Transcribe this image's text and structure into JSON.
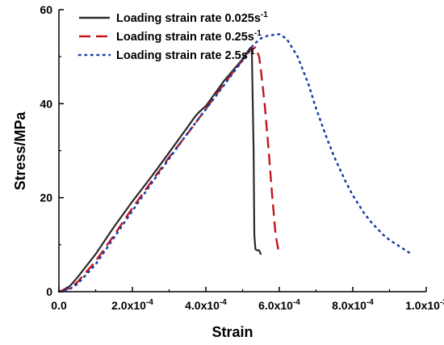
{
  "chart_data": {
    "type": "line",
    "xlabel": "Strain",
    "ylabel": "Stress/MPa",
    "xlim": [
      0,
      0.001
    ],
    "ylim": [
      0,
      60
    ],
    "x_ticks": [
      {
        "value": 0.0,
        "base": "0.0",
        "exp": ""
      },
      {
        "value": 0.0002,
        "base": "2.0x10",
        "exp": "-4"
      },
      {
        "value": 0.0004,
        "base": "4.0x10",
        "exp": "-4"
      },
      {
        "value": 0.0006,
        "base": "6.0x10",
        "exp": "-4"
      },
      {
        "value": 0.0008,
        "base": "8.0x10",
        "exp": "-4"
      },
      {
        "value": 0.001,
        "base": "1.0x10",
        "exp": "-3"
      }
    ],
    "y_ticks": [
      {
        "value": 0,
        "label": "0"
      },
      {
        "value": 20,
        "label": "20"
      },
      {
        "value": 40,
        "label": "40"
      },
      {
        "value": 60,
        "label": "60"
      }
    ],
    "legend_position": "top-left",
    "grid": false,
    "series": [
      {
        "name": "Loading strain rate 0.025",
        "name_unit": "s",
        "name_exp": "-1",
        "color": "#2b2b2b",
        "style": "solid",
        "x": [
          0.0,
          1e-05,
          3e-05,
          5e-05,
          0.0001,
          0.00015,
          0.0002,
          0.00025,
          0.0003,
          0.00035,
          0.00037,
          0.00038,
          0.0004,
          0.00045,
          0.0005,
          0.00052,
          0.000525,
          0.00053,
          0.000532,
          0.000535,
          0.00054,
          0.000545,
          0.00055
        ],
        "y": [
          0,
          0.3,
          1.2,
          3.0,
          8.0,
          13.8,
          19.2,
          24.3,
          29.6,
          35.0,
          37.2,
          38.1,
          39.5,
          44.9,
          49.5,
          51.8,
          52.0,
          30.0,
          12.0,
          9.0,
          8.8,
          8.8,
          7.9
        ]
      },
      {
        "name": "Loading strain rate 0.25",
        "name_unit": "s",
        "name_exp": "-1",
        "color": "#c0151b",
        "style": "dashed",
        "x": [
          0.0,
          1e-05,
          3e-05,
          5e-05,
          0.0001,
          0.00015,
          0.0002,
          0.00025,
          0.0003,
          0.00035,
          0.0004,
          0.00045,
          0.0005,
          0.00052,
          0.000535,
          0.000545,
          0.00055,
          0.00056,
          0.00057,
          0.00058,
          0.00059,
          0.0006
        ],
        "y": [
          0,
          0.2,
          0.8,
          2.0,
          6.5,
          12.0,
          17.8,
          23.2,
          28.6,
          33.6,
          38.9,
          44.3,
          49.3,
          51.3,
          52.0,
          50.0,
          47.0,
          40.0,
          31.0,
          21.0,
          12.0,
          7.8
        ]
      },
      {
        "name": "Loading strain rate 2.5",
        "name_unit": "s",
        "name_exp": "-1",
        "color": "#1a3fa8",
        "style": "dotted",
        "x": [
          0.0,
          1e-05,
          3e-05,
          5e-05,
          0.0001,
          0.00015,
          0.0002,
          0.00025,
          0.0003,
          0.00035,
          0.0004,
          0.00045,
          0.0005,
          0.00053,
          0.00055,
          0.00057,
          0.0006,
          0.00062,
          0.00065,
          0.00068,
          0.0007,
          0.00073,
          0.00075,
          0.00078,
          0.0008,
          0.00083,
          0.00085,
          0.00088,
          0.0009,
          0.00093,
          0.00095,
          0.00096
        ],
        "y": [
          0,
          0.1,
          0.6,
          1.6,
          5.8,
          11.5,
          17.2,
          22.8,
          28.3,
          33.7,
          38.8,
          44.0,
          49.2,
          52.6,
          53.9,
          54.5,
          54.8,
          53.8,
          50.0,
          44.0,
          39.0,
          32.5,
          28.6,
          23.5,
          20.5,
          16.8,
          14.8,
          12.3,
          11.0,
          9.5,
          8.5,
          8.0
        ]
      }
    ]
  }
}
